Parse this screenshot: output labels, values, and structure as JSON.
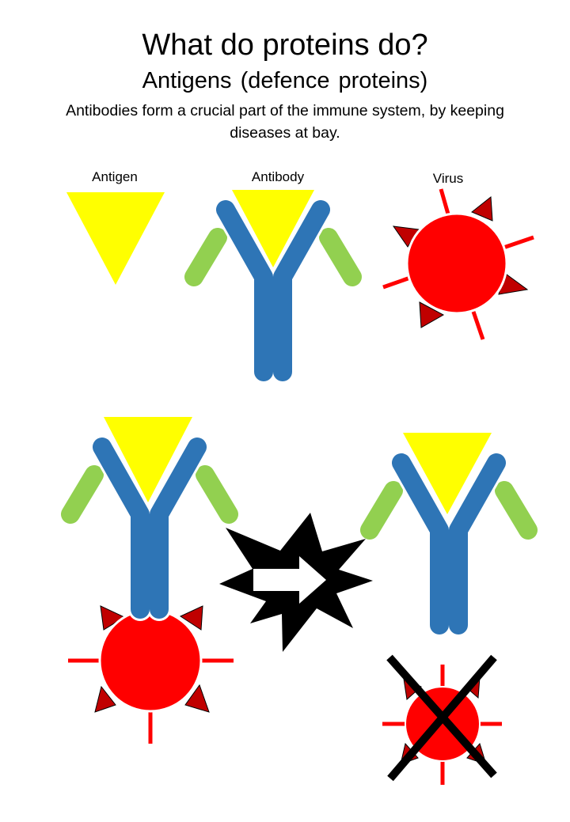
{
  "heading": {
    "title": "What do proteins do?",
    "subtitle": "Antigens (defence proteins)",
    "description_line1": "Antibodies form a crucial part of the immune system, by keeping",
    "description_line2": "diseases at bay."
  },
  "labels": {
    "antigen": "Antigen",
    "antibody": "Antibody",
    "virus": "Virus"
  },
  "colors": {
    "antigen": "#FFFF00",
    "antibody_heavy": "#2E75B6",
    "antibody_light": "#92D050",
    "virus_body": "#FF0000",
    "virus_spike": "#C00000",
    "arrow_burst": "#000000",
    "cross": "#000000"
  },
  "icons": {
    "antigen": "yellow-triangle-icon",
    "antibody": "y-shaped-antibody-icon",
    "virus": "red-virus-icon",
    "reaction_arrow": "burst-arrow-icon",
    "destroyed": "cross-out-icon"
  }
}
